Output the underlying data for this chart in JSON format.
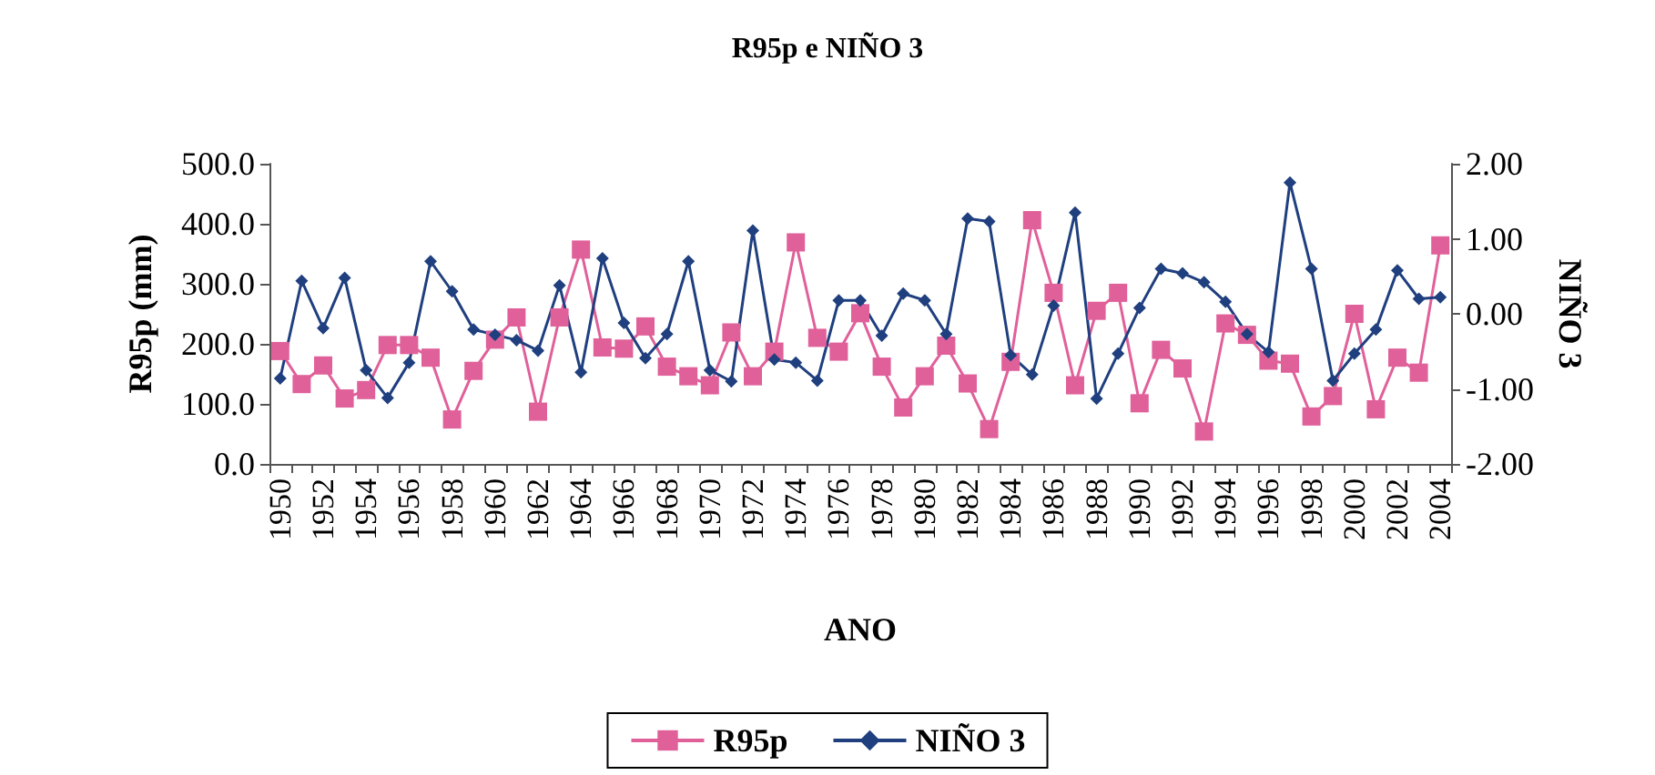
{
  "chart_data": {
    "type": "line",
    "title": "R95p e NIÑO 3",
    "xlabel": "ANO",
    "ylabel": "R95p (mm)",
    "y2label": "NIÑO 3",
    "categories": [
      "1950",
      null,
      "1952",
      null,
      "1954",
      null,
      "1956",
      null,
      "1958",
      null,
      "1960",
      null,
      "1962",
      null,
      "1964",
      null,
      "1966",
      null,
      "1968",
      null,
      "1970",
      null,
      "1972",
      null,
      "1974",
      null,
      "1976",
      null,
      "1978",
      null,
      "1980",
      null,
      "1982",
      null,
      "1984",
      null,
      "1986",
      null,
      "1988",
      null,
      "1990",
      null,
      "1992",
      null,
      "1994",
      null,
      "1996",
      null,
      "1998",
      null,
      "2000",
      null,
      "2002",
      null,
      "2004"
    ],
    "series": [
      {
        "name": "R95p",
        "color": "#e0609a",
        "marker": "square",
        "values": [
          188,
          133,
          164,
          109,
          123,
          198,
          198,
          177,
          74,
          155,
          207,
          244,
          87,
          244,
          357,
          194,
          192,
          229,
          162,
          146,
          131,
          219,
          146,
          187,
          369,
          210,
          187,
          251,
          162,
          94,
          146,
          197,
          134,
          58,
          170,
          406,
          285,
          131,
          255,
          285,
          101,
          190,
          159,
          54,
          234,
          215,
          172,
          167,
          79,
          113,
          250,
          91,
          177,
          152,
          364
        ]
      },
      {
        "name": "NIÑO 3",
        "color": "#1f3f7f",
        "marker": "diamond",
        "axis": "y2",
        "values": [
          -0.86,
          0.44,
          -0.19,
          0.48,
          -0.75,
          -1.12,
          -0.65,
          0.7,
          0.3,
          -0.21,
          -0.28,
          -0.35,
          -0.49,
          0.38,
          -0.78,
          0.74,
          -0.12,
          -0.59,
          -0.27,
          0.7,
          -0.75,
          -0.9,
          1.11,
          -0.61,
          -0.65,
          -0.89,
          0.18,
          0.18,
          -0.29,
          0.27,
          0.18,
          -0.27,
          1.27,
          1.23,
          -0.55,
          -0.81,
          0.11,
          1.35,
          -1.13,
          -0.53,
          0.08,
          0.6,
          0.54,
          0.42,
          0.16,
          -0.27,
          -0.51,
          1.75,
          0.6,
          -0.89,
          -0.53,
          -0.21,
          0.58,
          0.2,
          0.22
        ]
      }
    ],
    "ylim": [
      0,
      500
    ],
    "yticks": [
      {
        "value": 0,
        "label": "0.0"
      },
      {
        "value": 100,
        "label": "100.0"
      },
      {
        "value": 200,
        "label": "200.0"
      },
      {
        "value": 300,
        "label": "300.0"
      },
      {
        "value": 400,
        "label": "400.0"
      },
      {
        "value": 500,
        "label": "500.0"
      }
    ],
    "y2lim": [
      -2,
      2
    ],
    "y2ticks": [
      {
        "value": -2,
        "label": "-2.00"
      },
      {
        "value": -1,
        "label": "-1.00"
      },
      {
        "value": 0,
        "label": "0.00"
      },
      {
        "value": 1,
        "label": "1.00"
      },
      {
        "value": 2,
        "label": "2.00"
      }
    ],
    "grid": false,
    "legend": "bottom",
    "line_style": "solid"
  }
}
